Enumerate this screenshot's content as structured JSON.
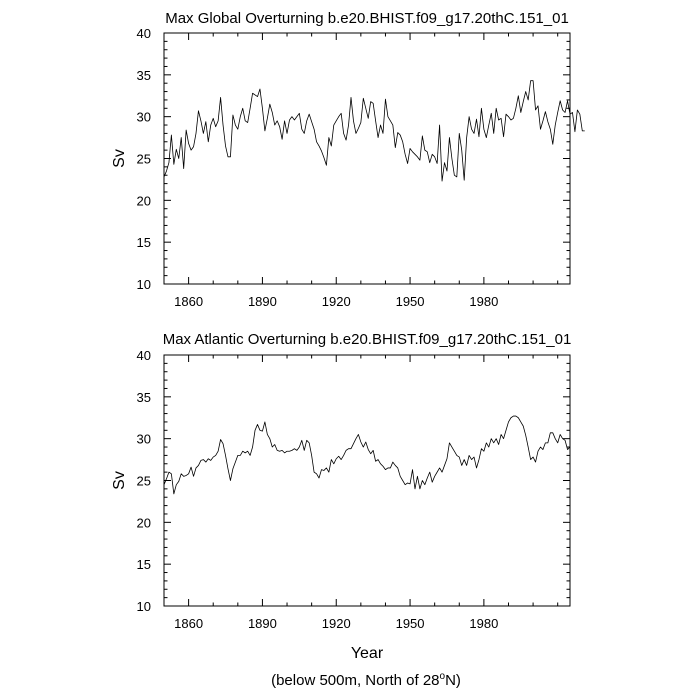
{
  "footnote": {
    "prefix": "(below 500m, North of 28",
    "sup": "o",
    "suffix": "N)"
  },
  "chart_data": [
    {
      "type": "line",
      "title": "Max Global Overturning b.e20.BHIST.f09_g17.20thC.151_01",
      "xlabel": "",
      "ylabel": "Sv",
      "xlim": [
        1850,
        2015
      ],
      "ylim": [
        10,
        40
      ],
      "x_major_ticks": [
        1860,
        1890,
        1920,
        1950,
        1980
      ],
      "y_major_ticks": [
        10,
        15,
        20,
        25,
        30,
        35,
        40
      ],
      "x_start": 1850,
      "x_step": 1,
      "values": [
        22.8,
        23.5,
        24.5,
        27.8,
        24.3,
        26.1,
        25.0,
        27.5,
        23.8,
        28.4,
        26.8,
        26.0,
        26.4,
        28.0,
        30.7,
        29.5,
        28.0,
        29.4,
        27.0,
        29.0,
        29.8,
        28.8,
        29.5,
        32.3,
        29.0,
        26.5,
        25.2,
        25.2,
        30.2,
        29.0,
        28.5,
        30.0,
        31.0,
        29.5,
        29.3,
        31.0,
        32.8,
        32.6,
        32.4,
        33.3,
        31.0,
        28.3,
        29.8,
        31.5,
        30.5,
        29.0,
        29.5,
        28.8,
        27.3,
        29.5,
        28.0,
        29.6,
        30.0,
        29.6,
        30.0,
        30.4,
        28.5,
        28.0,
        29.5,
        30.3,
        29.4,
        28.5,
        27.0,
        26.5,
        25.9,
        25.1,
        24.2,
        27.5,
        26.5,
        29.0,
        29.5,
        30.0,
        30.4,
        28.0,
        27.2,
        29.0,
        32.3,
        29.5,
        28.0,
        28.6,
        29.3,
        32.2,
        31.0,
        29.8,
        31.8,
        31.6,
        29.5,
        27.5,
        29.0,
        28.0,
        32.1,
        30.0,
        29.5,
        29.0,
        26.3,
        28.1,
        27.8,
        27.0,
        25.5,
        24.4,
        26.2,
        25.8,
        25.5,
        25.2,
        24.8,
        27.7,
        26.0,
        25.8,
        24.5,
        25.5,
        25.2,
        24.4,
        29.0,
        22.3,
        24.5,
        23.5,
        27.5,
        25.0,
        23.0,
        22.8,
        28.0,
        26.0,
        22.4,
        27.5,
        30.0,
        28.5,
        28.0,
        29.7,
        27.6,
        31.0,
        28.5,
        27.5,
        29.0,
        30.4,
        28.0,
        31.0,
        29.6,
        29.8,
        27.6,
        30.3,
        30.0,
        29.6,
        29.8,
        31.0,
        32.5,
        30.5,
        31.8,
        33.0,
        32.0,
        34.3,
        34.3,
        30.8,
        31.3,
        28.5,
        29.5,
        30.6,
        29.4,
        28.5,
        26.7,
        29.0,
        30.5,
        31.9,
        30.8,
        30.5,
        31.9,
        30.3,
        30.5,
        28.2,
        30.8,
        30.3,
        28.3,
        28.3
      ]
    },
    {
      "type": "line",
      "title": "Max Atlantic Overturning b.e20.BHIST.f09_g17.20thC.151_01",
      "xlabel": "Year",
      "ylabel": "Sv",
      "xlim": [
        1850,
        2015
      ],
      "ylim": [
        10,
        40
      ],
      "x_major_ticks": [
        1860,
        1890,
        1920,
        1950,
        1980
      ],
      "y_major_ticks": [
        10,
        15,
        20,
        25,
        30,
        35,
        40
      ],
      "x_start": 1850,
      "x_step": 1,
      "values": [
        24.5,
        25.2,
        26.0,
        25.8,
        23.4,
        24.5,
        24.9,
        25.8,
        25.5,
        25.6,
        25.8,
        26.6,
        25.5,
        26.5,
        26.8,
        27.4,
        27.5,
        27.2,
        27.6,
        27.4,
        27.8,
        28.0,
        28.5,
        29.9,
        29.4,
        28.0,
        26.4,
        25.0,
        26.4,
        27.2,
        28.0,
        28.0,
        28.5,
        28.3,
        28.5,
        28.0,
        29.0,
        31.0,
        31.7,
        31.0,
        30.9,
        32.0,
        30.5,
        30.0,
        29.0,
        29.3,
        28.6,
        28.5,
        28.6,
        28.3,
        28.5,
        28.5,
        28.6,
        28.8,
        28.6,
        29.0,
        29.8,
        28.6,
        29.8,
        29.5,
        28.0,
        26.0,
        25.8,
        25.3,
        26.3,
        26.2,
        26.5,
        26.0,
        27.5,
        27.0,
        27.6,
        27.9,
        27.5,
        28.0,
        28.6,
        28.8,
        28.8,
        29.4,
        30.0,
        30.5,
        29.6,
        29.0,
        29.6,
        28.7,
        28.2,
        28.6,
        27.3,
        27.5,
        27.0,
        26.7,
        26.3,
        26.5,
        26.5,
        27.2,
        26.8,
        26.5,
        25.5,
        25.0,
        24.5,
        24.7,
        24.6,
        26.3,
        24.0,
        25.5,
        24.0,
        25.0,
        24.5,
        25.3,
        26.0,
        24.8,
        25.5,
        26.0,
        26.5,
        26.0,
        26.8,
        27.6,
        29.5,
        29.0,
        28.5,
        28.0,
        27.8,
        26.8,
        27.5,
        26.8,
        28.0,
        27.5,
        27.8,
        26.5,
        27.5,
        28.8,
        28.5,
        29.5,
        29.0,
        30.0,
        29.5,
        30.0,
        29.3,
        30.5,
        30.0,
        31.0,
        32.0,
        32.5,
        32.7,
        32.7,
        32.5,
        32.0,
        31.5,
        30.4,
        29.0,
        27.5,
        27.8,
        27.2,
        28.5,
        29.0,
        28.7,
        29.5,
        29.5,
        30.7,
        30.7,
        30.0,
        29.5,
        30.5,
        30.0,
        29.8,
        28.7,
        29.0
      ]
    }
  ]
}
